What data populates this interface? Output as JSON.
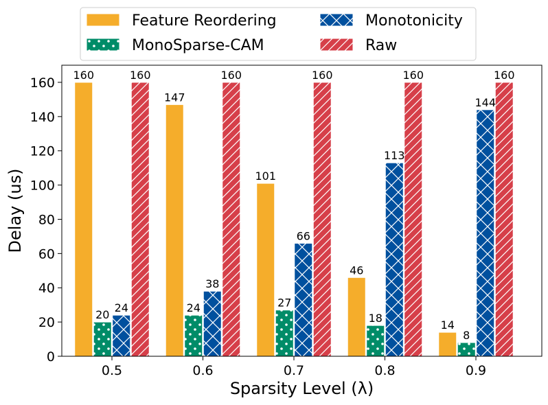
{
  "chart_data": {
    "type": "bar",
    "xlabel": "Sparsity Level (λ)",
    "ylabel": "Delay (us)",
    "categories": [
      "0.5",
      "0.6",
      "0.7",
      "0.8",
      "0.9"
    ],
    "ylim": [
      0,
      170
    ],
    "yticks": [
      0,
      20,
      40,
      60,
      80,
      100,
      120,
      140,
      160
    ],
    "grid": false,
    "legend_position": "top-center",
    "series": [
      {
        "name": "Feature Reordering",
        "values": [
          160,
          147,
          101,
          46,
          14
        ],
        "color": "#F5AD2B",
        "pattern": "solid"
      },
      {
        "name": "MonoSparse-CAM",
        "values": [
          20,
          24,
          27,
          18,
          8
        ],
        "color": "#008C68",
        "pattern": "dots"
      },
      {
        "name": "Monotonicity",
        "values": [
          24,
          38,
          66,
          113,
          144
        ],
        "color": "#00509E",
        "pattern": "cross"
      },
      {
        "name": "Raw",
        "values": [
          160,
          160,
          160,
          160,
          160
        ],
        "color": "#D63F49",
        "pattern": "diagonal"
      }
    ],
    "data_labels": [
      [
        "160",
        "147",
        "101",
        "46",
        "14"
      ],
      [
        "20",
        "24",
        "27",
        "18",
        "8"
      ],
      [
        "24",
        "38",
        "66",
        "113",
        "144"
      ],
      [
        "160",
        "160",
        "160",
        "160",
        "160"
      ]
    ]
  }
}
